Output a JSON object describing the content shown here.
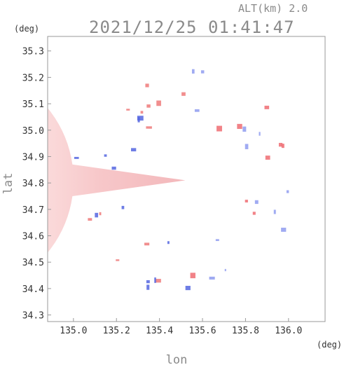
{
  "header": {
    "altitude_label": "ALT(km) 2.0",
    "timestamp": "2021/12/25 01:41:47"
  },
  "chart_data": {
    "type": "heatmap",
    "title": "2021/12/25 01:41:47",
    "subtitle": "ALT(km) 2.0",
    "xlabel": "lon",
    "ylabel": "lat",
    "x_unit": "(deg)",
    "y_unit": "(deg)",
    "xlim": [
      134.88,
      136.17
    ],
    "ylim": [
      34.275,
      35.355
    ],
    "x_ticks": [
      135.0,
      135.2,
      135.4,
      135.6,
      135.8,
      136.0
    ],
    "x_tick_labels": [
      "135.0",
      "135.2",
      "135.4",
      "135.6",
      "135.8",
      "136.0"
    ],
    "y_ticks": [
      34.3,
      34.4,
      34.5,
      34.6,
      34.7,
      34.8,
      34.9,
      35.0,
      35.1,
      35.2,
      35.3
    ],
    "y_tick_labels": [
      "34.3",
      "34.4",
      "34.5",
      "34.6",
      "34.7",
      "34.8",
      "34.9",
      "35.0",
      "35.1",
      "35.2",
      "35.3"
    ],
    "radar_center": {
      "lon": 135.52,
      "lat": 34.81
    },
    "radar_range_deg": 0.53,
    "colors": {
      "approaching": "#5a6ee6",
      "receding": "#f0646e",
      "zero": "#ffffff"
    }
  }
}
